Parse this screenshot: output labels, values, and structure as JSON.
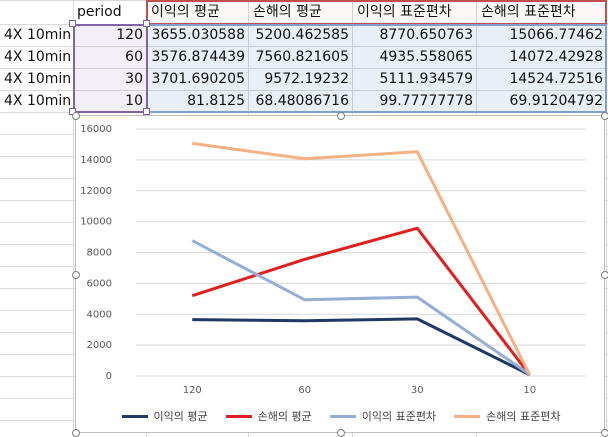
{
  "sheet": {
    "header": {
      "period": "period",
      "c1": "이익의 평균",
      "c2": "손해의 평균",
      "c3": "이익의 표준편차",
      "c4": "손해의 표준편차"
    },
    "rows": [
      {
        "label": "4X 10min",
        "period": "120",
        "c1": "3655.030588",
        "c2": "5200.462585",
        "c3": "8770.650763",
        "c4": "15066.77462"
      },
      {
        "label": "4X 10min",
        "period": "60",
        "c1": "3576.874439",
        "c2": "7560.821605",
        "c3": "4935.558065",
        "c4": "14072.42928"
      },
      {
        "label": "4X 10min",
        "period": "30",
        "c1": "3701.690205",
        "c2": "9572.19232",
        "c3": "5111.934579",
        "c4": "14524.72516"
      },
      {
        "label": "4X 10min",
        "period": "10",
        "c1": "81.8125",
        "c2": "68.48086716",
        "c3": "99.77777778",
        "c4": "69.91204792"
      }
    ]
  },
  "chart_data": {
    "type": "line",
    "title": "",
    "xlabel": "",
    "ylabel": "",
    "categories": [
      "120",
      "60",
      "30",
      "10"
    ],
    "ylim": [
      0,
      16000
    ],
    "yticks": [
      "0",
      "2000",
      "4000",
      "6000",
      "8000",
      "10000",
      "12000",
      "14000",
      "16000"
    ],
    "legend_position": "bottom",
    "grid": true,
    "series": [
      {
        "name": "이익의 평균",
        "color": "#1f3864",
        "values": [
          3655.030588,
          3576.874439,
          3701.690205,
          81.8125
        ]
      },
      {
        "name": "손해의 평균",
        "color": "#e02020",
        "values": [
          5200.462585,
          7560.821605,
          9572.19232,
          68.48086716
        ]
      },
      {
        "name": "이익의 표준편차",
        "color": "#95aed6",
        "values": [
          8770.650763,
          4935.558065,
          5111.934579,
          99.77777778
        ]
      },
      {
        "name": "손해의 표준편차",
        "color": "#f4b183",
        "values": [
          15066.77462,
          14072.42928,
          14524.72516,
          69.91204792
        ]
      }
    ]
  }
}
